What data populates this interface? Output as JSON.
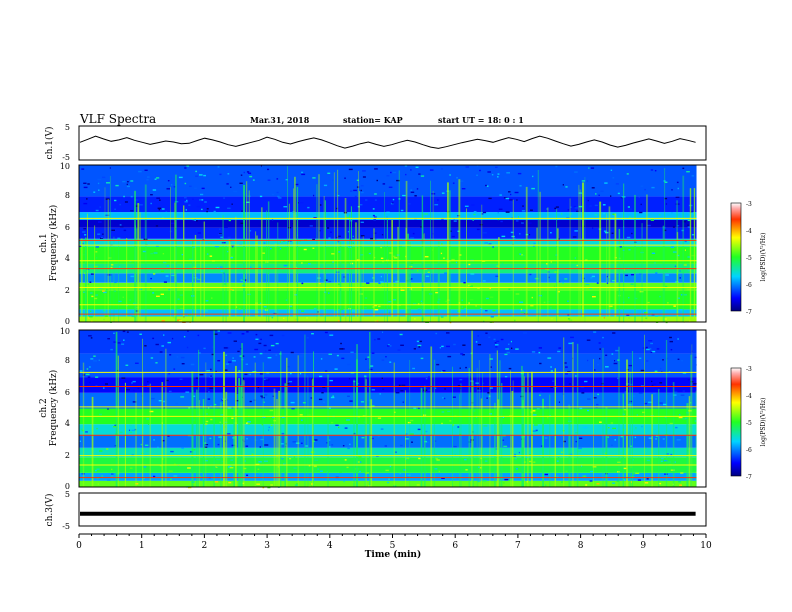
{
  "header": {
    "title": "VLF Spectra",
    "date": "Mar.31, 2018",
    "station": "station= KAP",
    "start": "start  UT =   18: 0  : 1"
  },
  "chart_data": [
    {
      "type": "line",
      "panel": "ch1-waveform",
      "ylabel": "ch.1(V)",
      "ylim": [
        -5,
        5
      ],
      "yticks": [
        "5",
        "-5"
      ],
      "x_end_min": 9.85,
      "series": [
        {
          "values": [
            0.2,
            1.1,
            2.0,
            1.2,
            0.5,
            0.9,
            1.6,
            0.8,
            0.2,
            -0.4,
            0.1,
            0.6,
            0.3,
            -0.2,
            -0.1,
            0.7,
            1.4,
            0.9,
            0.3,
            -0.5,
            -1.0,
            -0.4,
            0.2,
            0.8,
            1.7,
            1.1,
            0.2,
            -0.3,
            0.4,
            1.0,
            1.5,
            0.9,
            0.1,
            -0.8,
            -1.5,
            -0.9,
            -0.2,
            0.3,
            -0.4,
            -1.0,
            -0.5,
            0.2,
            0.8,
            0.3,
            -0.5,
            -1.2,
            -1.6,
            -1.1,
            -0.5,
            0.1,
            0.6,
            1.1,
            0.7,
            0.2,
            0.9,
            1.6,
            1.1,
            0.4,
            1.3,
            2.0,
            1.4,
            0.6,
            -0.2,
            -0.9,
            -0.4,
            0.3,
            0.9,
            0.3,
            -0.6,
            -1.2,
            -0.7,
            0.0,
            0.6,
            1.2,
            0.6,
            -0.1,
            0.5,
            1.3,
            0.8,
            0.2
          ]
        }
      ]
    },
    {
      "type": "heatmap",
      "panel": "ch1-spectrogram",
      "ylabel_1": "ch.1",
      "ylabel_2": "Frequency  (kHz)",
      "ylim": [
        0,
        10
      ],
      "yticks": [
        "0",
        "2",
        "4",
        "6",
        "8",
        "10"
      ],
      "colorbar": {
        "label": "log(PSD)(V²/Hz)",
        "ticks": [
          "-3",
          "-4",
          "-5",
          "-6",
          "-7"
        ],
        "range": [
          -7,
          -3
        ]
      },
      "bands": [
        {
          "f0": 0.0,
          "f1": 0.35,
          "level": -4.6
        },
        {
          "f0": 0.35,
          "f1": 0.8,
          "level": -5.8
        },
        {
          "f0": 0.8,
          "f1": 2.0,
          "level": -5.0
        },
        {
          "f0": 2.0,
          "f1": 2.5,
          "level": -4.8
        },
        {
          "f0": 2.5,
          "f1": 3.1,
          "level": -6.0
        },
        {
          "f0": 3.1,
          "f1": 3.7,
          "level": -5.3
        },
        {
          "f0": 3.7,
          "f1": 4.8,
          "level": -5.0
        },
        {
          "f0": 4.8,
          "f1": 5.3,
          "level": -5.6
        },
        {
          "f0": 5.3,
          "f1": 6.0,
          "level": -6.4
        },
        {
          "f0": 6.0,
          "f1": 6.5,
          "level": -6.7
        },
        {
          "f0": 6.5,
          "f1": 7.0,
          "level": -5.8
        },
        {
          "f0": 7.0,
          "f1": 8.0,
          "level": -6.4
        },
        {
          "f0": 8.0,
          "f1": 10.0,
          "level": -6.2
        }
      ],
      "lines_khz": [
        0.5,
        1.1,
        2.2,
        3.4,
        3.9,
        4.9,
        5.2,
        6.6
      ]
    },
    {
      "type": "heatmap",
      "panel": "ch2-spectrogram",
      "ylabel_1": "ch.2",
      "ylabel_2": "Frequency  (kHz)",
      "ylim": [
        0,
        10
      ],
      "yticks": [
        "0",
        "2",
        "4",
        "6",
        "8",
        "10"
      ],
      "colorbar": {
        "label": "log(PSD)(V²/Hz)",
        "ticks": [
          "-3",
          "-4",
          "-5",
          "-6",
          "-7"
        ],
        "range": [
          -7,
          -3
        ]
      },
      "bands": [
        {
          "f0": 0.0,
          "f1": 0.4,
          "level": -4.8
        },
        {
          "f0": 0.4,
          "f1": 0.9,
          "level": -5.9
        },
        {
          "f0": 0.9,
          "f1": 1.9,
          "level": -5.1
        },
        {
          "f0": 1.9,
          "f1": 2.5,
          "level": -5.5
        },
        {
          "f0": 2.5,
          "f1": 3.3,
          "level": -6.1
        },
        {
          "f0": 3.3,
          "f1": 4.0,
          "level": -5.6
        },
        {
          "f0": 4.0,
          "f1": 5.0,
          "level": -5.0
        },
        {
          "f0": 5.0,
          "f1": 6.0,
          "level": -6.1
        },
        {
          "f0": 6.0,
          "f1": 7.0,
          "level": -6.5
        },
        {
          "f0": 7.0,
          "f1": 8.5,
          "level": -6.2
        },
        {
          "f0": 8.5,
          "f1": 10.0,
          "level": -6.3
        }
      ],
      "lines_khz": [
        0.6,
        1.4,
        2.0,
        3.3,
        4.5,
        5.1,
        6.4,
        7.3
      ]
    },
    {
      "type": "line",
      "panel": "ch3-waveform",
      "ylabel": "ch.3(V)",
      "ylim": [
        -5,
        5
      ],
      "yticks": [
        "5",
        "-5"
      ],
      "x_end_min": 9.85,
      "series": [
        {
          "values": [
            -1.3,
            -1.3
          ]
        }
      ]
    }
  ],
  "xaxis": {
    "label": "Time  (min)",
    "ticks": [
      "0",
      "1",
      "2",
      "3",
      "4",
      "5",
      "6",
      "7",
      "8",
      "9",
      "10"
    ],
    "xlim": [
      0,
      10
    ]
  }
}
